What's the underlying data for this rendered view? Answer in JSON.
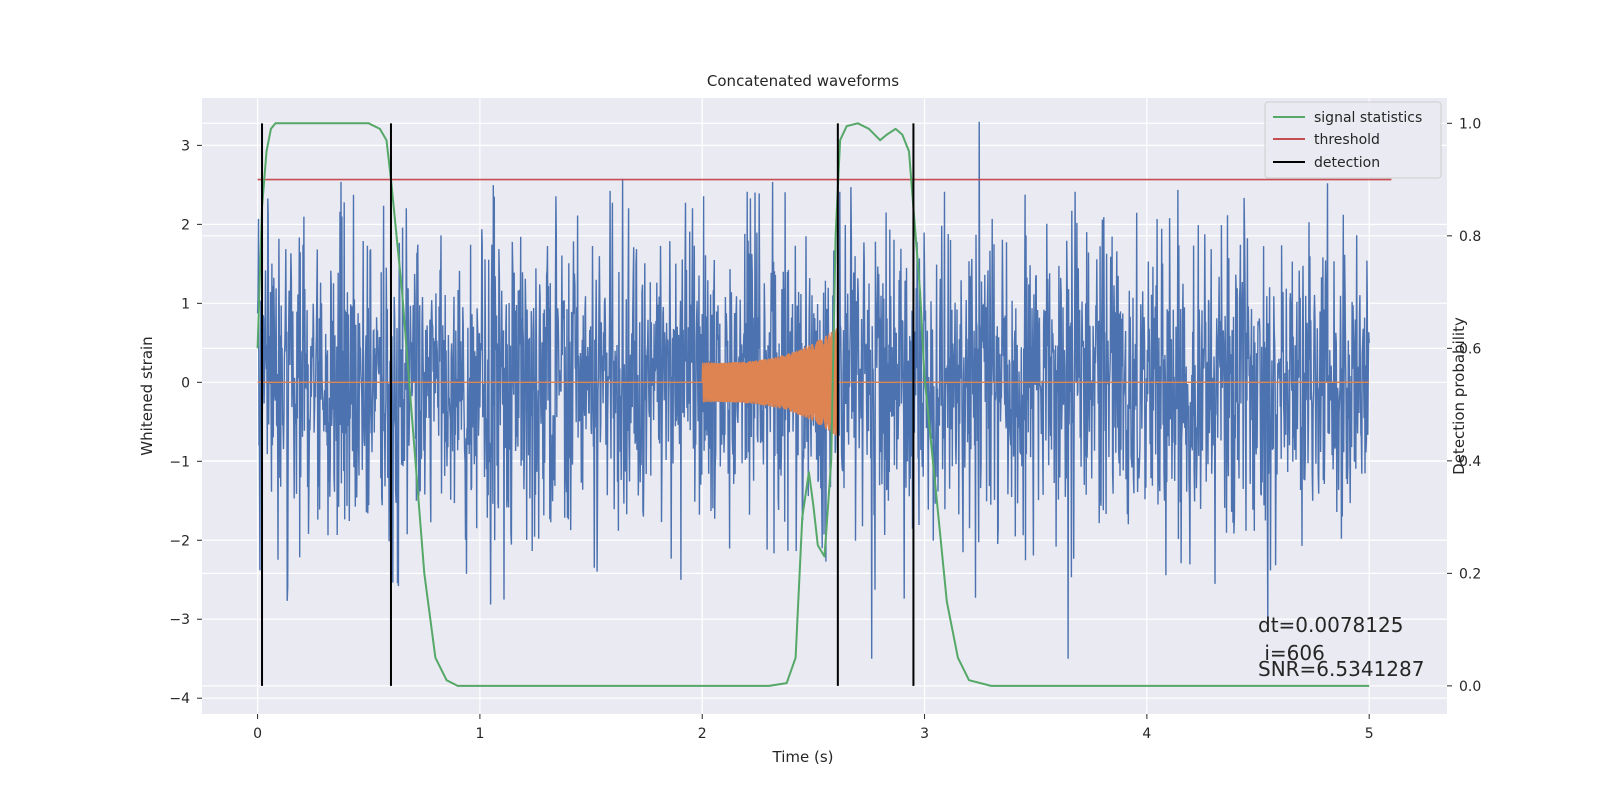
{
  "chart_data": {
    "type": "line",
    "title": "Concatenated waveforms",
    "xlabel": "Time (s)",
    "ylabel": "Whitened strain",
    "y2label": "Detection probability",
    "xlim": [
      -0.25,
      5.35
    ],
    "ylim": [
      -4.2,
      3.6
    ],
    "y2lim": [
      -0.05,
      1.045
    ],
    "xticks": [
      0,
      1,
      2,
      3,
      4,
      5
    ],
    "xtick_labels": [
      "0",
      "1",
      "2",
      "3",
      "4",
      "5"
    ],
    "yticks": [
      -4,
      -3,
      -2,
      -1,
      0,
      1,
      2,
      3
    ],
    "ytick_labels": [
      "−4",
      "−3",
      "−2",
      "−1",
      "0",
      "1",
      "2",
      "3"
    ],
    "y2ticks": [
      0.0,
      0.2,
      0.4,
      0.6,
      0.8,
      1.0
    ],
    "y2tick_labels": [
      "0.0",
      "0.2",
      "0.4",
      "0.6",
      "0.8",
      "1.0"
    ],
    "grid": true,
    "legend_position": "top-right",
    "colors": {
      "strain": "#4c72b0",
      "template": "#dd8452",
      "signal_statistics": "#55a868",
      "threshold": "#c44e52",
      "detection": "#000000",
      "background": "#eaeaf2",
      "grid": "#ffffff"
    },
    "series": [
      {
        "name": "",
        "role": "whitened strain noise",
        "axis": "left",
        "x_range": [
          0,
          5
        ],
        "amplitude_envelope": [
          -3.5,
          3.3
        ]
      },
      {
        "name": "",
        "role": "injected chirp waveform",
        "axis": "left",
        "x_range": [
          0,
          5
        ],
        "chirp_start": 2.0,
        "chirp_end": 2.61,
        "amplitude_start": 0.25,
        "amplitude_end": 0.7
      },
      {
        "name": "signal statistics",
        "axis": "right",
        "x": [
          0.0,
          0.02,
          0.04,
          0.06,
          0.08,
          0.1,
          0.2,
          0.3,
          0.4,
          0.5,
          0.55,
          0.58,
          0.6,
          0.65,
          0.7,
          0.75,
          0.8,
          0.85,
          0.9,
          1.0,
          1.5,
          2.0,
          2.3,
          2.38,
          2.42,
          2.45,
          2.48,
          2.5,
          2.52,
          2.55,
          2.58,
          2.6,
          2.62,
          2.65,
          2.7,
          2.75,
          2.8,
          2.83,
          2.87,
          2.9,
          2.93,
          2.95,
          2.98,
          3.0,
          3.05,
          3.1,
          3.15,
          3.2,
          3.3,
          3.5,
          4.0,
          4.5,
          5.0
        ],
        "y": [
          0.6,
          0.85,
          0.95,
          0.99,
          1.0,
          1.0,
          1.0,
          1.0,
          1.0,
          1.0,
          0.99,
          0.97,
          0.9,
          0.7,
          0.45,
          0.2,
          0.05,
          0.01,
          0.0,
          0.0,
          0.0,
          0.0,
          0.0,
          0.005,
          0.05,
          0.3,
          0.38,
          0.32,
          0.25,
          0.23,
          0.4,
          0.8,
          0.97,
          0.995,
          1.0,
          0.99,
          0.97,
          0.98,
          0.99,
          0.98,
          0.95,
          0.85,
          0.7,
          0.55,
          0.35,
          0.15,
          0.05,
          0.01,
          0.0,
          0.0,
          0.0,
          0.0,
          0.0
        ]
      },
      {
        "name": "threshold",
        "axis": "right",
        "x": [
          0,
          5.1
        ],
        "y": [
          0.9,
          0.9
        ]
      },
      {
        "name": "detection",
        "axis": "right",
        "x": [
          0.02,
          0.6,
          2.61,
          2.95
        ],
        "y_range": [
          0,
          1
        ]
      }
    ],
    "annotations": [
      "dt=0.0078125",
      " i=606",
      "SNR=6.5341287"
    ]
  }
}
